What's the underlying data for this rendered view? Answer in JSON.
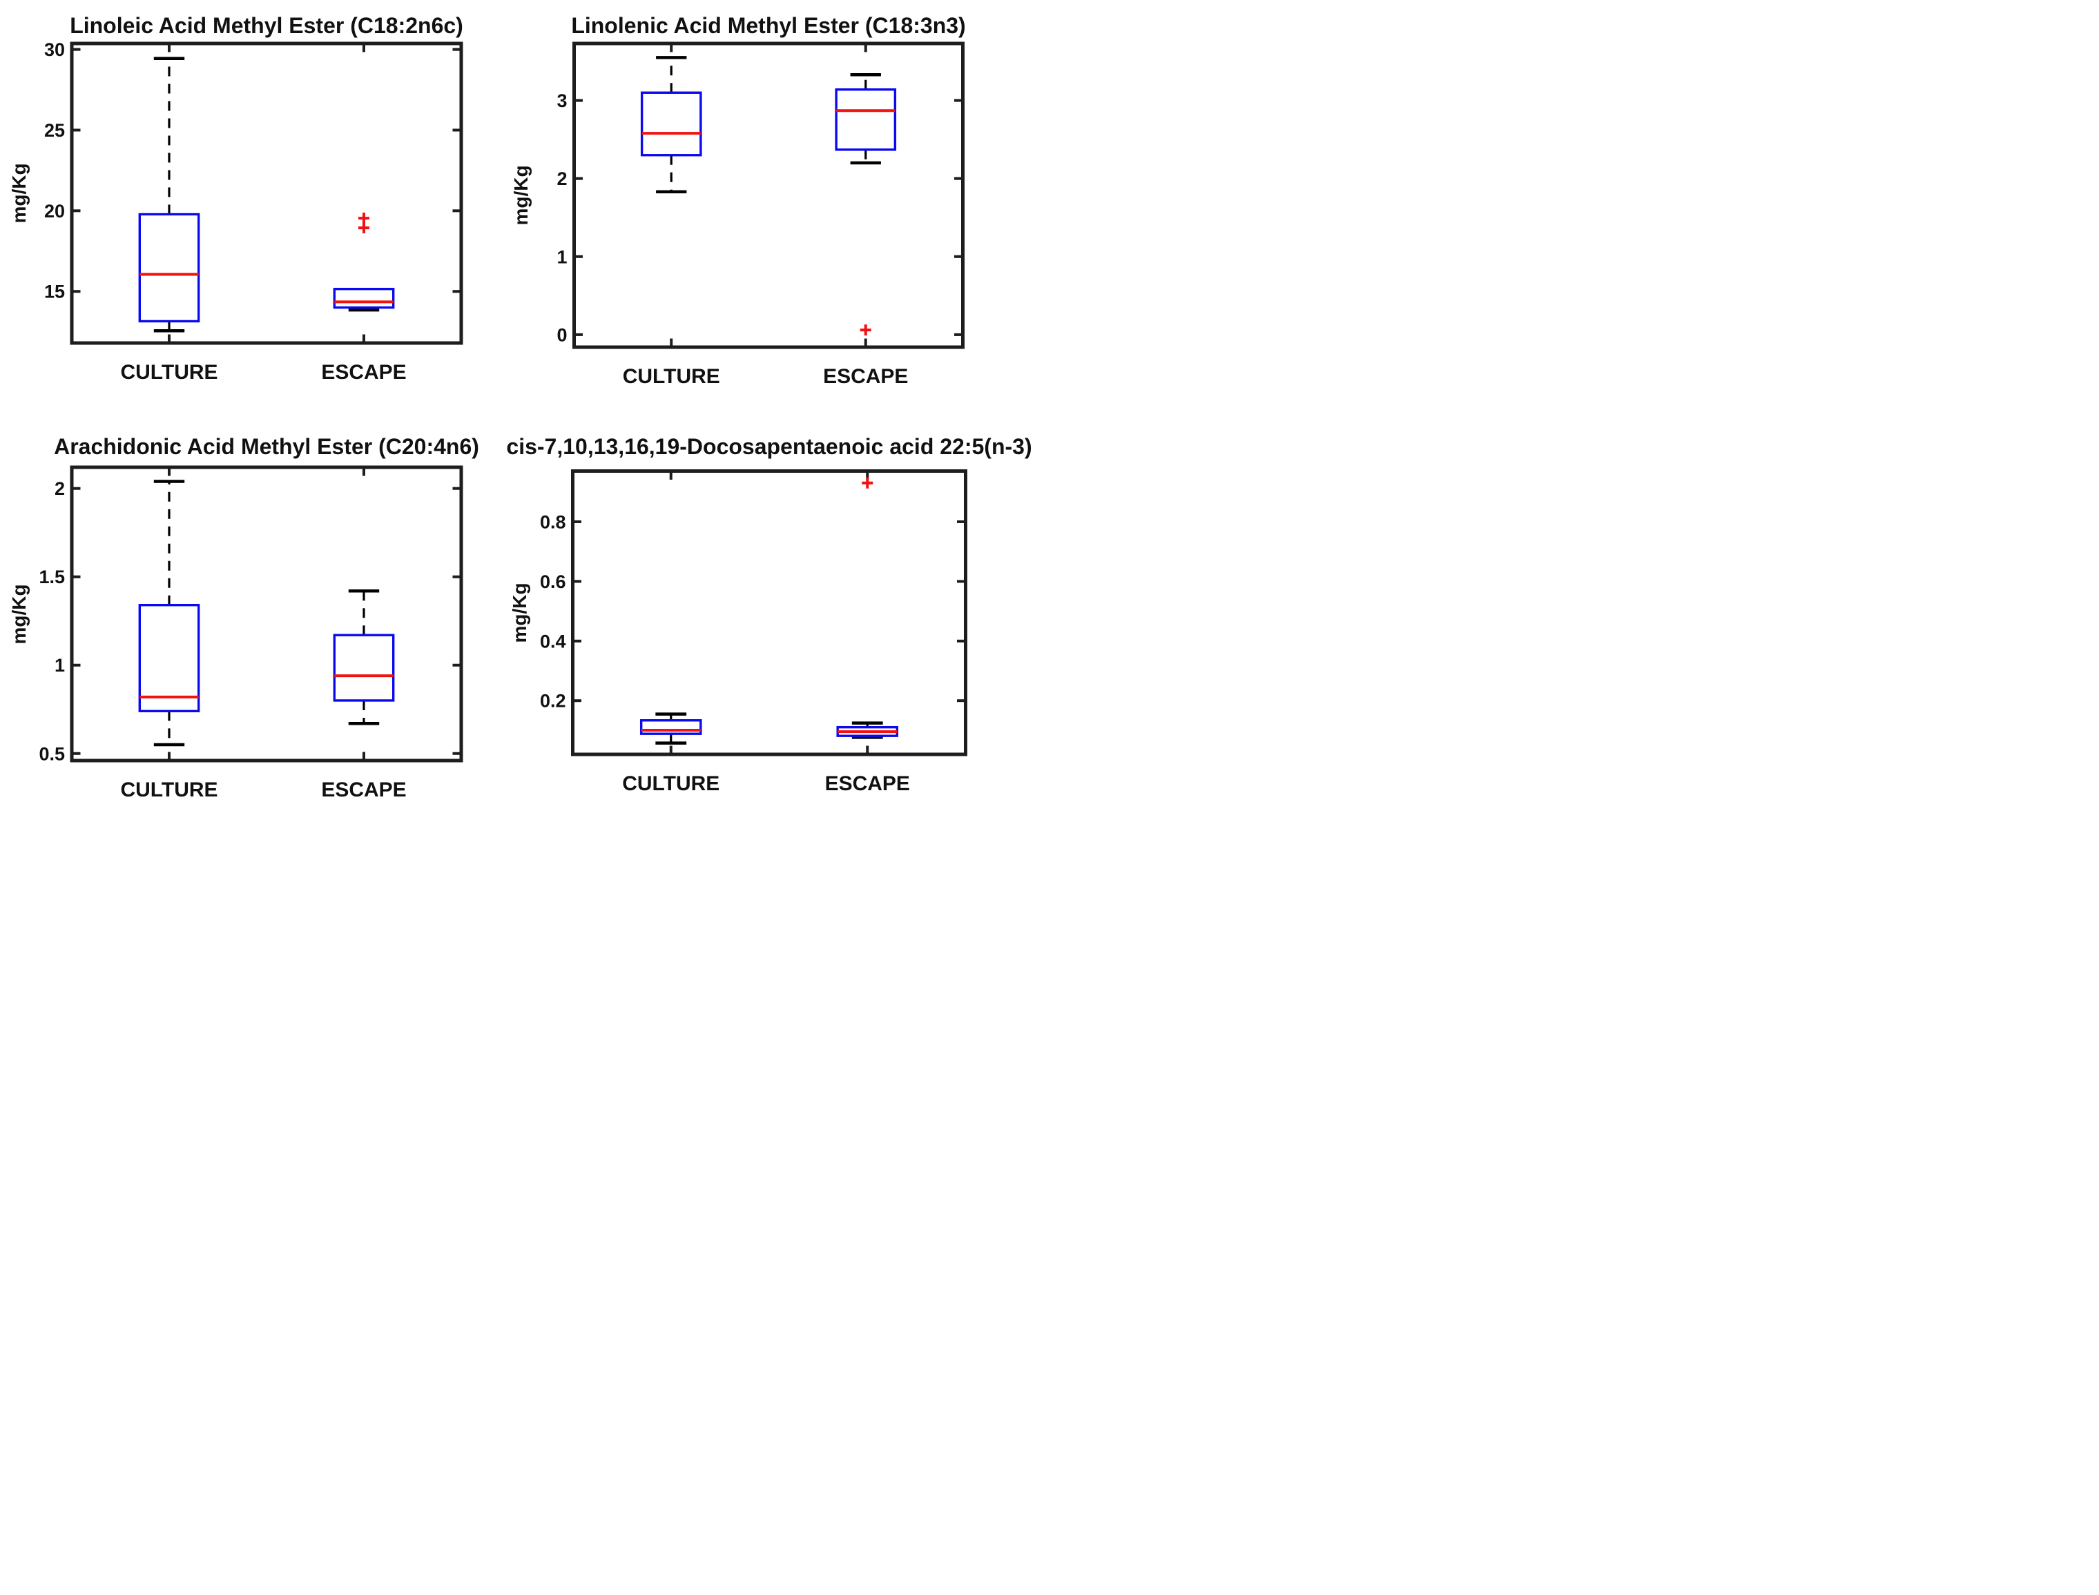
{
  "figure": {
    "background": "#ffffff",
    "colors": {
      "box": "#0a0af0",
      "median": "#f21111",
      "outlier": "#f21111",
      "whisker": "#000000",
      "axis": "#1d1d1d",
      "text": "#111111"
    }
  },
  "chart_data": [
    {
      "type": "box",
      "title": "Linoleic Acid Methyl Ester (C18:2n6c)",
      "ylabel": "mg/Kg",
      "categories": [
        "CULTURE",
        "ESCAPE"
      ],
      "ylim": [
        11.8,
        30.37
      ],
      "yticks": [
        15,
        20,
        25,
        30
      ],
      "ytick_labels": [
        "15",
        "20",
        "25",
        "30"
      ],
      "grid": false,
      "series": [
        {
          "name": "CULTURE",
          "whisker_low": 12.56,
          "q1": 13.15,
          "median": 16.06,
          "q3": 19.78,
          "whisker_high": 29.44,
          "outliers": []
        },
        {
          "name": "ESCAPE",
          "whisker_low": 13.85,
          "q1": 14.0,
          "median": 14.35,
          "q3": 15.15,
          "whisker_high": 15.15,
          "outliers": [
            18.94,
            19.54
          ]
        }
      ]
    },
    {
      "type": "box",
      "title": "Linolenic Acid Methyl Ester (C18:3n3)",
      "ylabel": "mg/Kg",
      "categories": [
        "CULTURE",
        "ESCAPE"
      ],
      "ylim": [
        -0.16,
        3.73
      ],
      "yticks": [
        0,
        1,
        2,
        3
      ],
      "ytick_labels": [
        "0",
        "1",
        "2",
        "3"
      ],
      "grid": false,
      "series": [
        {
          "name": "CULTURE",
          "whisker_low": 1.83,
          "q1": 2.3,
          "median": 2.58,
          "q3": 3.1,
          "whisker_high": 3.55,
          "outliers": []
        },
        {
          "name": "ESCAPE",
          "whisker_low": 2.2,
          "q1": 2.37,
          "median": 2.87,
          "q3": 3.14,
          "whisker_high": 3.33,
          "outliers": [
            0.06
          ]
        }
      ]
    },
    {
      "type": "box",
      "title": "Arachidonic Acid Methyl Ester (C20:4n6)",
      "ylabel": "mg/Kg",
      "categories": [
        "CULTURE",
        "ESCAPE"
      ],
      "ylim": [
        0.46,
        2.12
      ],
      "yticks": [
        0.5,
        1,
        1.5,
        2
      ],
      "ytick_labels": [
        "0.5",
        "1",
        "1.5",
        "2"
      ],
      "grid": false,
      "series": [
        {
          "name": "CULTURE",
          "whisker_low": 0.55,
          "q1": 0.74,
          "median": 0.82,
          "q3": 1.34,
          "whisker_high": 2.04,
          "outliers": []
        },
        {
          "name": "ESCAPE",
          "whisker_low": 0.67,
          "q1": 0.8,
          "median": 0.94,
          "q3": 1.17,
          "whisker_high": 1.42,
          "outliers": []
        }
      ]
    },
    {
      "type": "box",
      "title": "cis-7,10,13,16,19-Docosapentaenoic acid 22:5(n-3)",
      "ylabel": "mg/Kg",
      "categories": [
        "CULTURE",
        "ESCAPE"
      ],
      "ylim": [
        0.02,
        0.97
      ],
      "yticks": [
        0.2,
        0.4,
        0.6,
        0.8
      ],
      "ytick_labels": [
        "0.2",
        "0.4",
        "0.6",
        "0.8"
      ],
      "grid": false,
      "series": [
        {
          "name": "CULTURE",
          "whisker_low": 0.058,
          "q1": 0.089,
          "median": 0.101,
          "q3": 0.134,
          "whisker_high": 0.155,
          "outliers": []
        },
        {
          "name": "ESCAPE",
          "whisker_low": 0.077,
          "q1": 0.082,
          "median": 0.096,
          "q3": 0.111,
          "whisker_high": 0.125,
          "outliers": [
            0.93
          ]
        }
      ]
    }
  ]
}
